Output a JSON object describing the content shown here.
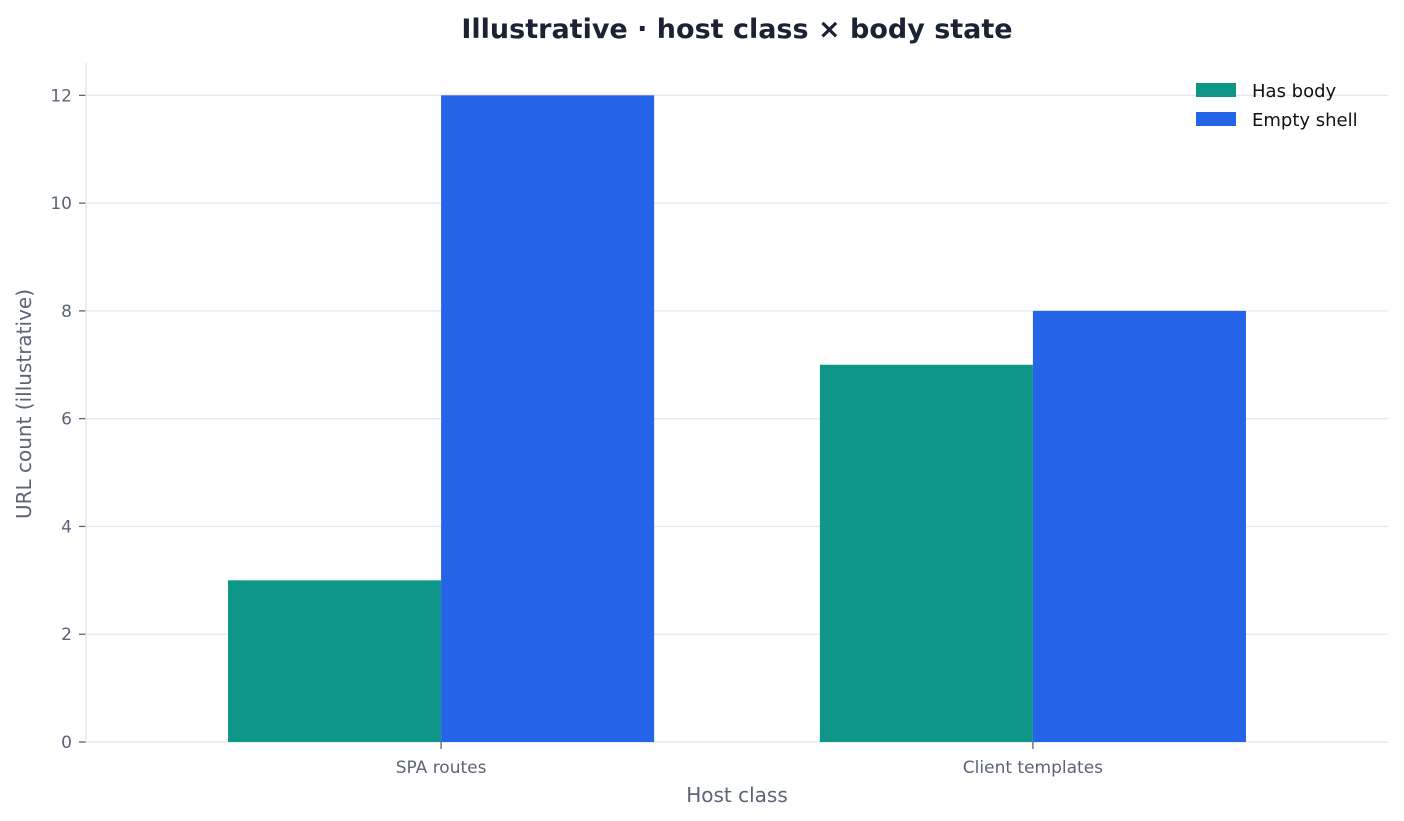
{
  "chart_data": {
    "type": "bar",
    "title": "Illustrative · host class × body state",
    "xlabel": "Host class",
    "ylabel": "URL count (illustrative)",
    "categories": [
      "SPA routes",
      "Client templates"
    ],
    "series": [
      {
        "name": "Has body",
        "values": [
          3,
          7
        ],
        "color": "#0e9688"
      },
      {
        "name": "Empty shell",
        "values": [
          12,
          8
        ],
        "color": "#2563e8"
      }
    ],
    "ylim": [
      0,
      12.6
    ],
    "yticks": [
      0,
      2,
      4,
      6,
      8,
      10,
      12
    ],
    "grid": true,
    "legend": "top-right"
  }
}
